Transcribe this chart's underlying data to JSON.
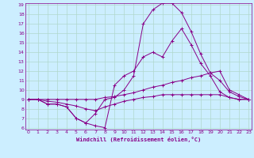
{
  "xlabel": "Windchill (Refroidissement éolien,°C)",
  "bg_color": "#cceeff",
  "grid_color": "#b0d8cc",
  "line_color": "#880088",
  "xmin": 0,
  "xmax": 23,
  "ymin": 6,
  "ymax": 19,
  "yticks": [
    6,
    7,
    8,
    9,
    10,
    11,
    12,
    13,
    14,
    15,
    16,
    17,
    18,
    19
  ],
  "xticks": [
    0,
    1,
    2,
    3,
    4,
    5,
    6,
    7,
    8,
    9,
    10,
    11,
    12,
    13,
    14,
    15,
    16,
    17,
    18,
    19,
    20,
    21,
    22,
    23
  ],
  "series": [
    [
      9.0,
      9.0,
      8.5,
      8.5,
      8.2,
      7.0,
      6.5,
      6.2,
      6.0,
      10.5,
      11.5,
      12.0,
      13.5,
      14.0,
      13.5,
      15.2,
      16.5,
      14.8,
      12.8,
      11.5,
      9.8,
      9.2,
      9.0,
      9.0
    ],
    [
      9.0,
      9.0,
      8.5,
      8.5,
      8.2,
      7.0,
      6.5,
      7.5,
      9.0,
      9.2,
      10.0,
      11.5,
      17.0,
      18.5,
      19.2,
      19.2,
      18.2,
      16.2,
      13.8,
      11.8,
      11.0,
      9.8,
      9.3,
      9.0
    ],
    [
      9.0,
      9.0,
      9.0,
      9.0,
      9.0,
      9.0,
      9.0,
      9.0,
      9.2,
      9.3,
      9.5,
      9.7,
      10.0,
      10.3,
      10.5,
      10.8,
      11.0,
      11.3,
      11.5,
      11.8,
      12.0,
      10.0,
      9.5,
      9.0
    ],
    [
      9.0,
      9.0,
      8.8,
      8.7,
      8.5,
      8.3,
      8.0,
      7.8,
      8.2,
      8.5,
      8.8,
      9.0,
      9.2,
      9.3,
      9.5,
      9.5,
      9.5,
      9.5,
      9.5,
      9.5,
      9.5,
      9.2,
      9.0,
      9.0
    ]
  ]
}
